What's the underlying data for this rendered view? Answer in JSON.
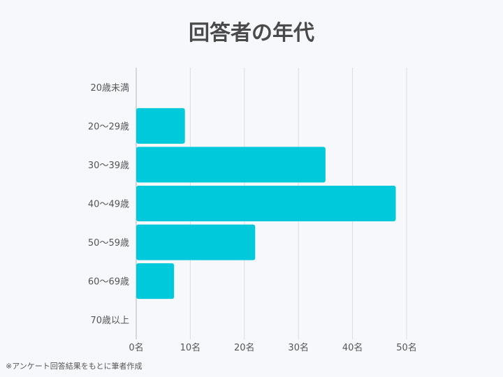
{
  "title": "回答者の年代",
  "footnote": "※アンケート回答結果をもとに筆者作成",
  "colors": {
    "bar": "#00c9db",
    "grid": "#d9dbe0",
    "axis": "#c8cbd1",
    "text": "#555555"
  },
  "chart_data": {
    "type": "bar",
    "orientation": "horizontal",
    "title": "回答者の年代",
    "categories": [
      "20歳未満",
      "20～29歳",
      "30～39歳",
      "40～49歳",
      "50～59歳",
      "60～69歳",
      "70歳以上"
    ],
    "values": [
      0,
      9,
      35,
      48,
      22,
      7,
      0
    ],
    "xlim": [
      0,
      50
    ],
    "x_ticks": [
      0,
      10,
      20,
      30,
      40,
      50
    ],
    "x_tick_labels": [
      "0名",
      "10名",
      "20名",
      "30名",
      "40名",
      "50名"
    ],
    "grid": true
  }
}
